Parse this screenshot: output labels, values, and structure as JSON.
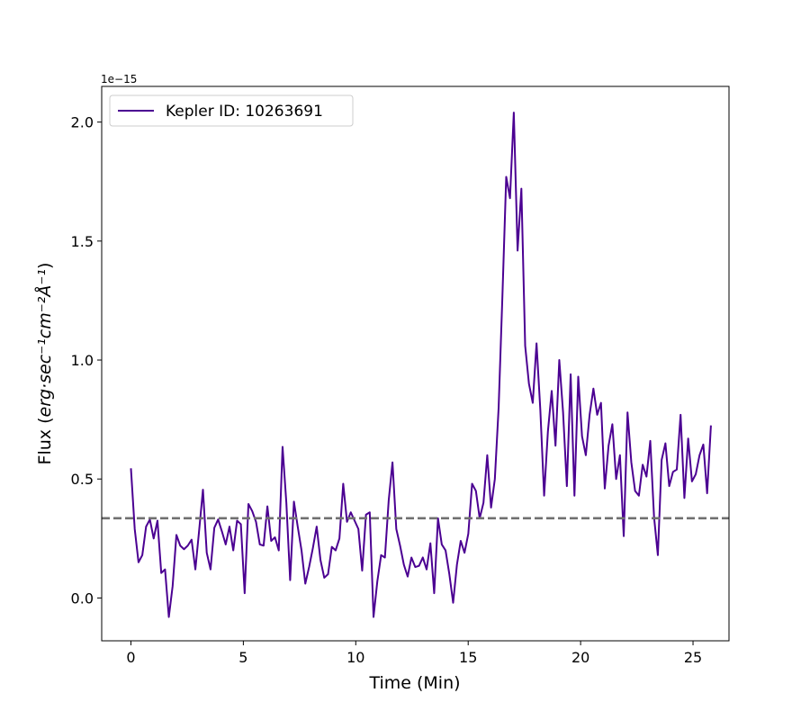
{
  "chart_data": {
    "type": "line",
    "xlabel": "Time (Min)",
    "ylabel_prefix": "Flux (",
    "ylabel_math": "erg·sec⁻¹cm⁻²Å⁻¹",
    "ylabel_suffix": ")",
    "y_offset_text": "1e−15",
    "y_scale_exponent": -15,
    "xlim": [
      -1.3,
      26.6
    ],
    "ylim": [
      -0.18,
      2.15
    ],
    "xticks": [
      0,
      5,
      10,
      15,
      20,
      25
    ],
    "xtick_labels": [
      "0",
      "5",
      "10",
      "15",
      "20",
      "25"
    ],
    "yticks": [
      0.0,
      0.5,
      1.0,
      1.5,
      2.0
    ],
    "ytick_labels": [
      "0.0",
      "0.5",
      "1.0",
      "1.5",
      "2.0"
    ],
    "grid": false,
    "legend_position": "top-left",
    "baseline": {
      "y": 0.335,
      "color": "#707070",
      "style": "dashed"
    },
    "series": [
      {
        "name": "Kepler ID: 10263691",
        "color": "#4B0092",
        "x_start": 0,
        "x_step": 0.1686,
        "values": [
          0.545,
          0.29,
          0.15,
          0.18,
          0.3,
          0.33,
          0.25,
          0.325,
          0.105,
          0.12,
          -0.08,
          0.05,
          0.265,
          0.22,
          0.205,
          0.22,
          0.245,
          0.12,
          0.285,
          0.455,
          0.19,
          0.12,
          0.295,
          0.33,
          0.28,
          0.225,
          0.3,
          0.2,
          0.325,
          0.31,
          0.02,
          0.395,
          0.365,
          0.32,
          0.225,
          0.22,
          0.385,
          0.24,
          0.255,
          0.2,
          0.635,
          0.4,
          0.075,
          0.405,
          0.3,
          0.2,
          0.06,
          0.13,
          0.21,
          0.3,
          0.16,
          0.085,
          0.1,
          0.215,
          0.2,
          0.25,
          0.48,
          0.32,
          0.36,
          0.325,
          0.29,
          0.115,
          0.35,
          0.36,
          -0.08,
          0.07,
          0.18,
          0.17,
          0.41,
          0.57,
          0.29,
          0.22,
          0.14,
          0.09,
          0.17,
          0.13,
          0.135,
          0.17,
          0.12,
          0.23,
          0.02,
          0.335,
          0.225,
          0.2,
          0.1,
          -0.02,
          0.14,
          0.24,
          0.19,
          0.27,
          0.48,
          0.45,
          0.335,
          0.4,
          0.6,
          0.38,
          0.5,
          0.8,
          1.27,
          1.77,
          1.68,
          2.04,
          1.46,
          1.72,
          1.06,
          0.9,
          0.82,
          1.07,
          0.79,
          0.43,
          0.7,
          0.87,
          0.64,
          1.0,
          0.78,
          0.47,
          0.94,
          0.43,
          0.93,
          0.68,
          0.6,
          0.77,
          0.88,
          0.77,
          0.82,
          0.46,
          0.64,
          0.73,
          0.5,
          0.6,
          0.26,
          0.78,
          0.57,
          0.45,
          0.43,
          0.56,
          0.51,
          0.66,
          0.34,
          0.18,
          0.58,
          0.65,
          0.47,
          0.53,
          0.54,
          0.77,
          0.42,
          0.67,
          0.49,
          0.52,
          0.6,
          0.645,
          0.44,
          0.725
        ]
      }
    ]
  }
}
